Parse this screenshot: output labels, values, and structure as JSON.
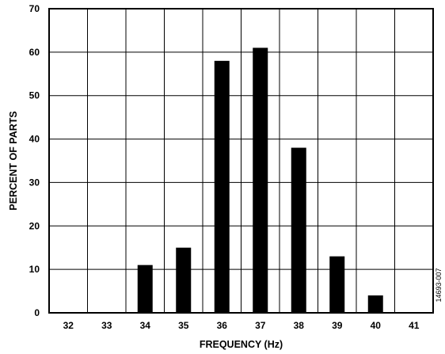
{
  "chart_data": {
    "type": "bar",
    "title": "",
    "xlabel": "FREQUENCY (Hz)",
    "ylabel": "PERCENT OF PARTS",
    "categories": [
      "32",
      "33",
      "34",
      "35",
      "36",
      "37",
      "38",
      "39",
      "40",
      "41"
    ],
    "values": [
      0,
      0,
      11,
      15,
      58,
      61,
      38,
      13,
      4,
      0
    ],
    "ylim": [
      0,
      70
    ],
    "yticks": [
      "0",
      "10",
      "20",
      "30",
      "40",
      "50",
      "60",
      "70"
    ],
    "grid": true,
    "bar_color": "#000000",
    "legend": "none"
  },
  "figure_id": "14693-007"
}
